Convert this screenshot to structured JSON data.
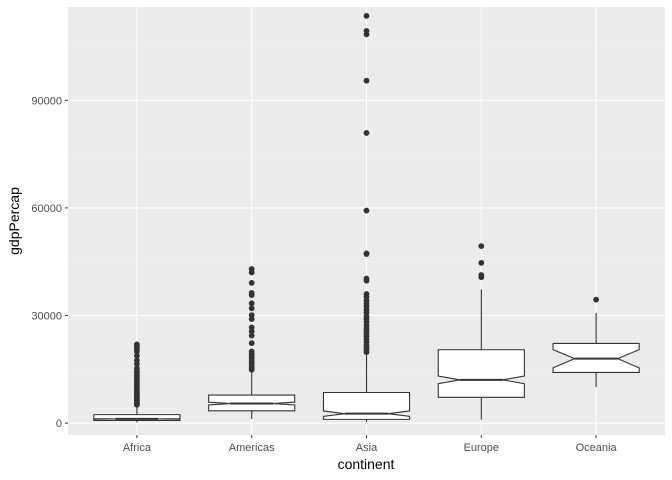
{
  "chart_data": {
    "type": "boxplot",
    "notched": true,
    "title": "",
    "xlabel": "continent",
    "ylabel": "gdpPercap",
    "ylim": [
      -3300,
      116000
    ],
    "yticks": [
      0,
      30000,
      60000,
      90000
    ],
    "ytick_labels": [
      "0",
      "30000",
      "60000",
      "90000"
    ],
    "categories": [
      "Africa",
      "Americas",
      "Asia",
      "Europe",
      "Oceania"
    ],
    "grid": true,
    "legend": "none",
    "colors": {
      "panel": "#ebebeb",
      "grid_major": "#ffffff",
      "grid_minor": "#f4f4f4",
      "box_fill": "#ffffff",
      "box_line": "#333333",
      "outlier": "#333333",
      "tick_text": "#4d4d4d"
    },
    "boxes": [
      {
        "category": "Africa",
        "lower_whisker": 241,
        "q1": 761,
        "median": 1192,
        "q3": 2377,
        "upper_whisker": 4780,
        "notch_low": 1125,
        "notch_high": 1260,
        "outliers": [
          21951,
          21500,
          20800,
          20000,
          18800,
          17500,
          16500,
          15300,
          14500,
          13900,
          13200,
          12600,
          12000,
          11500,
          11000,
          10500,
          10000,
          9500,
          9000,
          8600,
          8200,
          7800,
          7400,
          7000,
          6600,
          6200,
          5800,
          5400,
          5100
        ]
      },
      {
        "category": "Americas",
        "lower_whisker": 1202,
        "q1": 3428,
        "median": 5466,
        "q3": 7830,
        "upper_whisker": 14500,
        "notch_low": 5060,
        "notch_high": 5870,
        "outliers": [
          42952,
          42000,
          39100,
          36300,
          35700,
          33400,
          32000,
          30100,
          29000,
          26700,
          25600,
          24400,
          22300,
          20000,
          19300,
          18600,
          18000,
          17200,
          16700,
          16000,
          15400,
          14900
        ]
      },
      {
        "category": "Asia",
        "lower_whisker": 331,
        "q1": 1057,
        "median": 2647,
        "q3": 8549,
        "upper_whisker": 19000,
        "notch_low": 1900,
        "notch_high": 3400,
        "outliers": [
          113523,
          109348,
          108382,
          95458,
          80895,
          59265,
          47307,
          47143,
          40300,
          39725,
          36000,
          35200,
          34200,
          33300,
          32600,
          31600,
          30800,
          29800,
          29000,
          28200,
          27300,
          26400,
          25700,
          25000,
          24200,
          23400,
          22600,
          21700,
          21000,
          20500,
          19800
        ]
      },
      {
        "category": "Europe",
        "lower_whisker": 974,
        "q1": 7213,
        "median": 12082,
        "q3": 20461,
        "upper_whisker": 37300,
        "notch_low": 11000,
        "notch_high": 13150,
        "outliers": [
          49357,
          44684,
          41283,
          40676
        ]
      },
      {
        "category": "Oceania",
        "lower_whisker": 10040,
        "q1": 14142,
        "median": 17983,
        "q3": 22214,
        "upper_whisker": 30688,
        "notch_low": 15400,
        "notch_high": 20500,
        "outliers": [
          34435
        ]
      }
    ]
  }
}
